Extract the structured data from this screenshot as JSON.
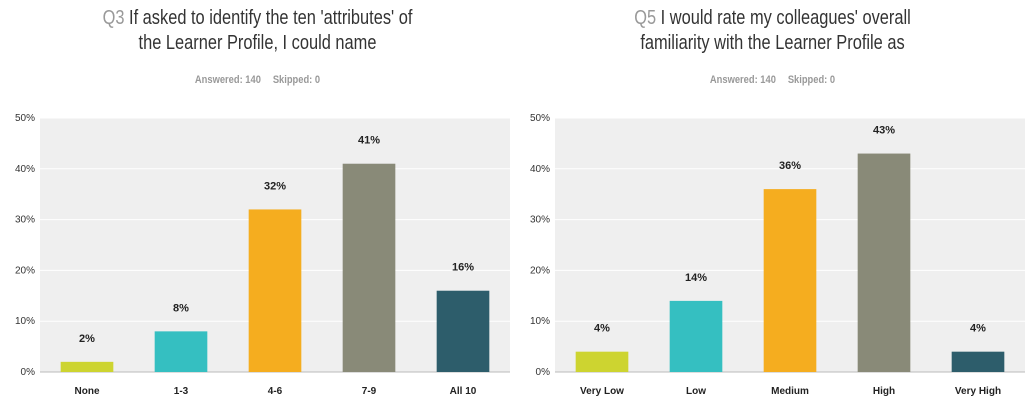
{
  "charts": [
    {
      "qnum": "Q3",
      "title_line1": "If asked to identify the ten 'attributes' of",
      "title_line2": "the Learner Profile, I could name",
      "answered": "Answered: 140",
      "skipped": "Skipped: 0"
    },
    {
      "qnum": "Q5",
      "title_line1": "I would rate my colleagues' overall",
      "title_line2": "familiarity with the Learner Profile as",
      "answered": "Answered: 140",
      "skipped": "Skipped: 0"
    }
  ],
  "chart_data": [
    {
      "type": "bar",
      "title": "Q3 If asked to identify the ten 'attributes' of the Learner Profile, I could name",
      "categories": [
        "None",
        "1-3",
        "4-6",
        "7-9",
        "All 10"
      ],
      "values": [
        2,
        8,
        32,
        41,
        16
      ],
      "value_labels": [
        "2%",
        "8%",
        "32%",
        "41%",
        "16%"
      ],
      "colors": [
        "#cdd430",
        "#35bfc1",
        "#f5ad1f",
        "#898a78",
        "#2d5d6b"
      ],
      "yticks": [
        "0%",
        "10%",
        "20%",
        "30%",
        "40%",
        "50%"
      ],
      "ylim": [
        0,
        50
      ],
      "grid": true
    },
    {
      "type": "bar",
      "title": "Q5 I would rate my colleagues' overall familiarity with the Learner Profile as",
      "categories": [
        "Very Low",
        "Low",
        "Medium",
        "High",
        "Very High"
      ],
      "values": [
        4,
        14,
        36,
        43,
        4
      ],
      "value_labels": [
        "4%",
        "14%",
        "36%",
        "43%",
        "4%"
      ],
      "colors": [
        "#cdd430",
        "#35bfc1",
        "#f5ad1f",
        "#898a78",
        "#2d5d6b"
      ],
      "yticks": [
        "0%",
        "10%",
        "20%",
        "30%",
        "40%",
        "50%"
      ],
      "ylim": [
        0,
        50
      ],
      "grid": true
    }
  ]
}
